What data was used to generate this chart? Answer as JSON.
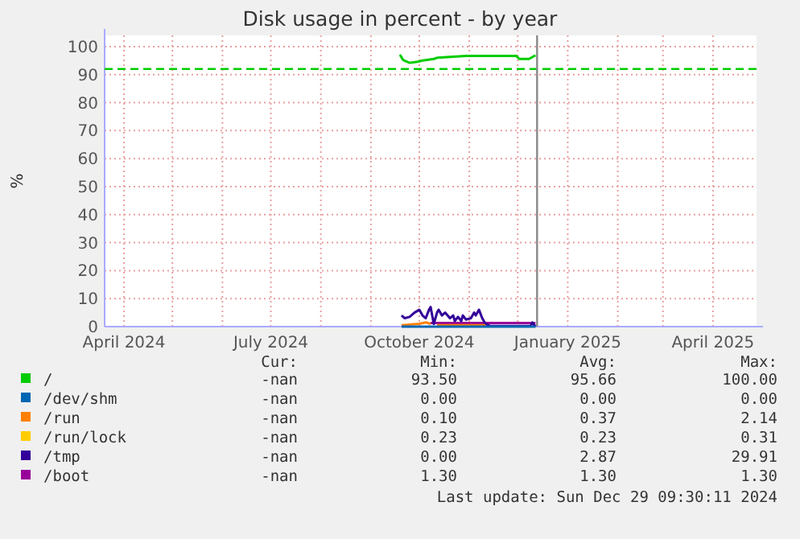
{
  "chart_data": {
    "type": "line",
    "title": "Disk usage in percent - by year",
    "ylabel": "%",
    "xlim": [
      "2024-03-20",
      "2025-04-28"
    ],
    "xticks": [
      {
        "value": "2024-04-01",
        "label": "April 2024"
      },
      {
        "value": "2024-05-01",
        "label": null
      },
      {
        "value": "2024-06-01",
        "label": null
      },
      {
        "value": "2024-07-01",
        "label": "July 2024"
      },
      {
        "value": "2024-08-01",
        "label": null
      },
      {
        "value": "2024-09-01",
        "label": null
      },
      {
        "value": "2024-10-01",
        "label": "October 2024"
      },
      {
        "value": "2024-11-01",
        "label": null
      },
      {
        "value": "2024-12-01",
        "label": null
      },
      {
        "value": "2025-01-01",
        "label": "January 2025"
      },
      {
        "value": "2025-02-01",
        "label": null
      },
      {
        "value": "2025-03-01",
        "label": null
      },
      {
        "value": "2025-04-01",
        "label": "April 2025"
      }
    ],
    "ylim": [
      0,
      104
    ],
    "yticks": [
      0,
      10,
      20,
      30,
      40,
      50,
      60,
      70,
      80,
      90,
      100
    ],
    "grid": true,
    "legend": "bottom",
    "series": [
      {
        "name": "/",
        "color": "#00cc00",
        "x": [
          "2024-09-19",
          "2024-09-21",
          "2024-09-25",
          "2024-09-30",
          "2024-10-03",
          "2024-10-10",
          "2024-10-12",
          "2024-10-30",
          "2024-11-30",
          "2024-12-02",
          "2024-12-08",
          "2024-12-12"
        ],
        "values": [
          97.1,
          95.2,
          94.2,
          94.6,
          95,
          95.6,
          96,
          96.7,
          96.7,
          95.6,
          95.6,
          96.9
        ]
      },
      {
        "name": "/dev/shm",
        "color": "#0066b3",
        "x": [
          "2024-09-20",
          "2024-12-12"
        ],
        "values": [
          0,
          0
        ]
      },
      {
        "name": "/run",
        "color": "#ff8000",
        "x": [
          "2024-09-20",
          "2024-10-01",
          "2024-10-05",
          "2024-10-08",
          "2024-10-10",
          "2024-10-12",
          "2024-11-11"
        ],
        "values": [
          0.5,
          1,
          1.5,
          1,
          null,
          0.5,
          0.5
        ]
      },
      {
        "name": "/run/lock",
        "color": "#ffcc00"
      },
      {
        "name": "/tmp",
        "color": "#330099",
        "x": [
          "2024-09-20",
          "2024-09-22",
          "2024-09-25",
          "2024-09-28",
          "2024-10-01",
          "2024-10-03",
          "2024-10-05",
          "2024-10-07",
          "2024-10-08",
          "2024-10-10",
          "2024-10-12",
          "2024-10-13",
          "2024-10-15",
          "2024-10-17",
          "2024-10-20",
          "2024-10-22",
          "2024-10-23",
          "2024-10-25",
          "2024-10-27",
          "2024-10-28",
          "2024-10-30",
          "2024-11-02",
          "2024-11-04",
          "2024-11-05",
          "2024-11-07",
          "2024-11-09",
          "2024-11-11",
          "2024-11-14",
          "2024-12-09",
          "2024-12-10",
          "2024-12-12"
        ],
        "values": [
          4,
          3,
          3.5,
          5,
          6,
          4,
          3,
          6,
          7,
          1,
          5,
          6,
          4,
          5,
          3,
          4,
          2,
          3.5,
          2,
          4,
          2.5,
          3,
          5,
          4,
          6,
          3,
          1,
          0.2,
          0.2,
          1.5,
          0
        ]
      },
      {
        "name": "/boot",
        "color": "#990099",
        "x": [
          "2024-10-08",
          "2024-12-12"
        ],
        "values": [
          1.3,
          1.3
        ]
      }
    ],
    "ref_lines": [
      {
        "axis": "y",
        "value": 92,
        "color": "#00cc00",
        "line_style": "dashed"
      },
      {
        "axis": "x",
        "value": "2024-12-13",
        "color": "#888888"
      }
    ],
    "annotations": [
      "Cur:",
      "Min:",
      "Avg:",
      "Max:",
      "-nan",
      "93.50",
      "95.66",
      "100.00",
      "-nan",
      "0.00",
      "0.00",
      "0.00",
      "-nan",
      "0.10",
      "0.37",
      "2.14",
      "-nan",
      "0.23",
      "0.23",
      "0.31",
      "-nan",
      "0.00",
      "2.87",
      "29.91",
      "-nan",
      "1.30",
      "1.30",
      "1.30",
      "Last update: Sun Dec 29 09:30:11 2024"
    ]
  }
}
